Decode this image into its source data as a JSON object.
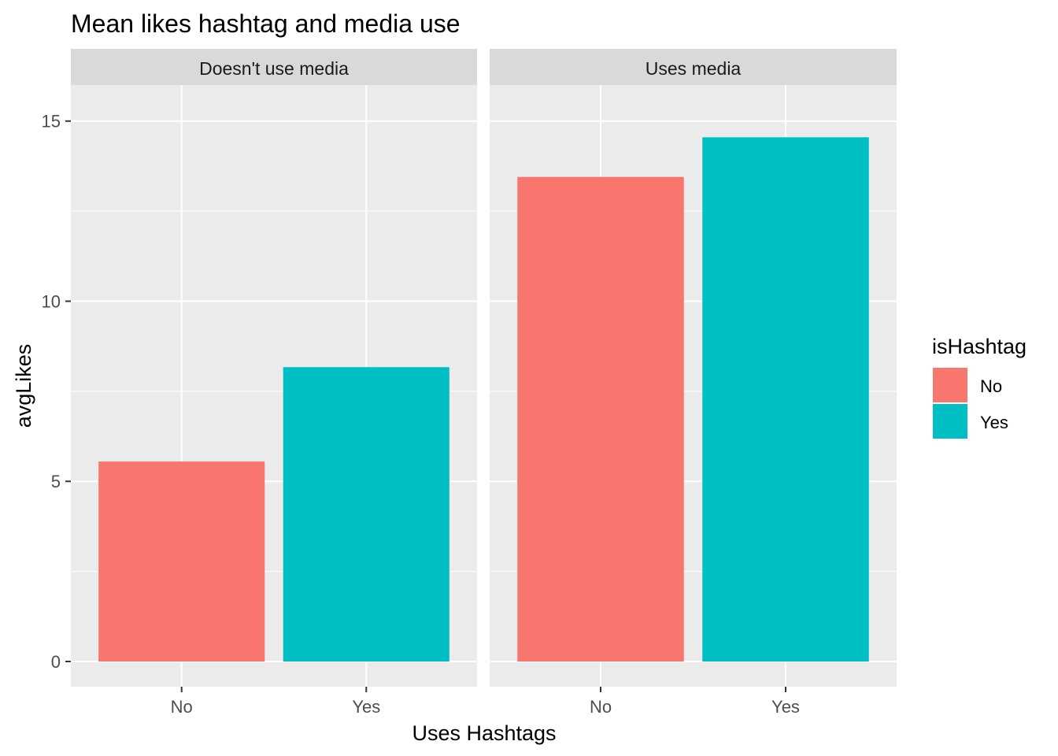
{
  "chart_data": {
    "type": "bar",
    "title": "Mean likes hashtag and media use",
    "xlabel": "Uses Hashtags",
    "ylabel": "avgLikes",
    "ylim": [
      -0.7,
      16
    ],
    "yticks": [
      0,
      5,
      10,
      15
    ],
    "grid": true,
    "categories": [
      "No",
      "Yes"
    ],
    "facets": [
      {
        "label": "Doesn't use media",
        "values": [
          5.55,
          8.17
        ]
      },
      {
        "label": "Uses media",
        "values": [
          13.45,
          14.55
        ]
      }
    ],
    "legend": {
      "title": "isHashtag",
      "position": "right",
      "entries": [
        {
          "label": "No",
          "color": "#F8766D"
        },
        {
          "label": "Yes",
          "color": "#00BFC4"
        }
      ]
    },
    "panel_background": "#EBEBEB",
    "strip_background": "#D9D9D9",
    "grid_color": "#FFFFFF"
  }
}
